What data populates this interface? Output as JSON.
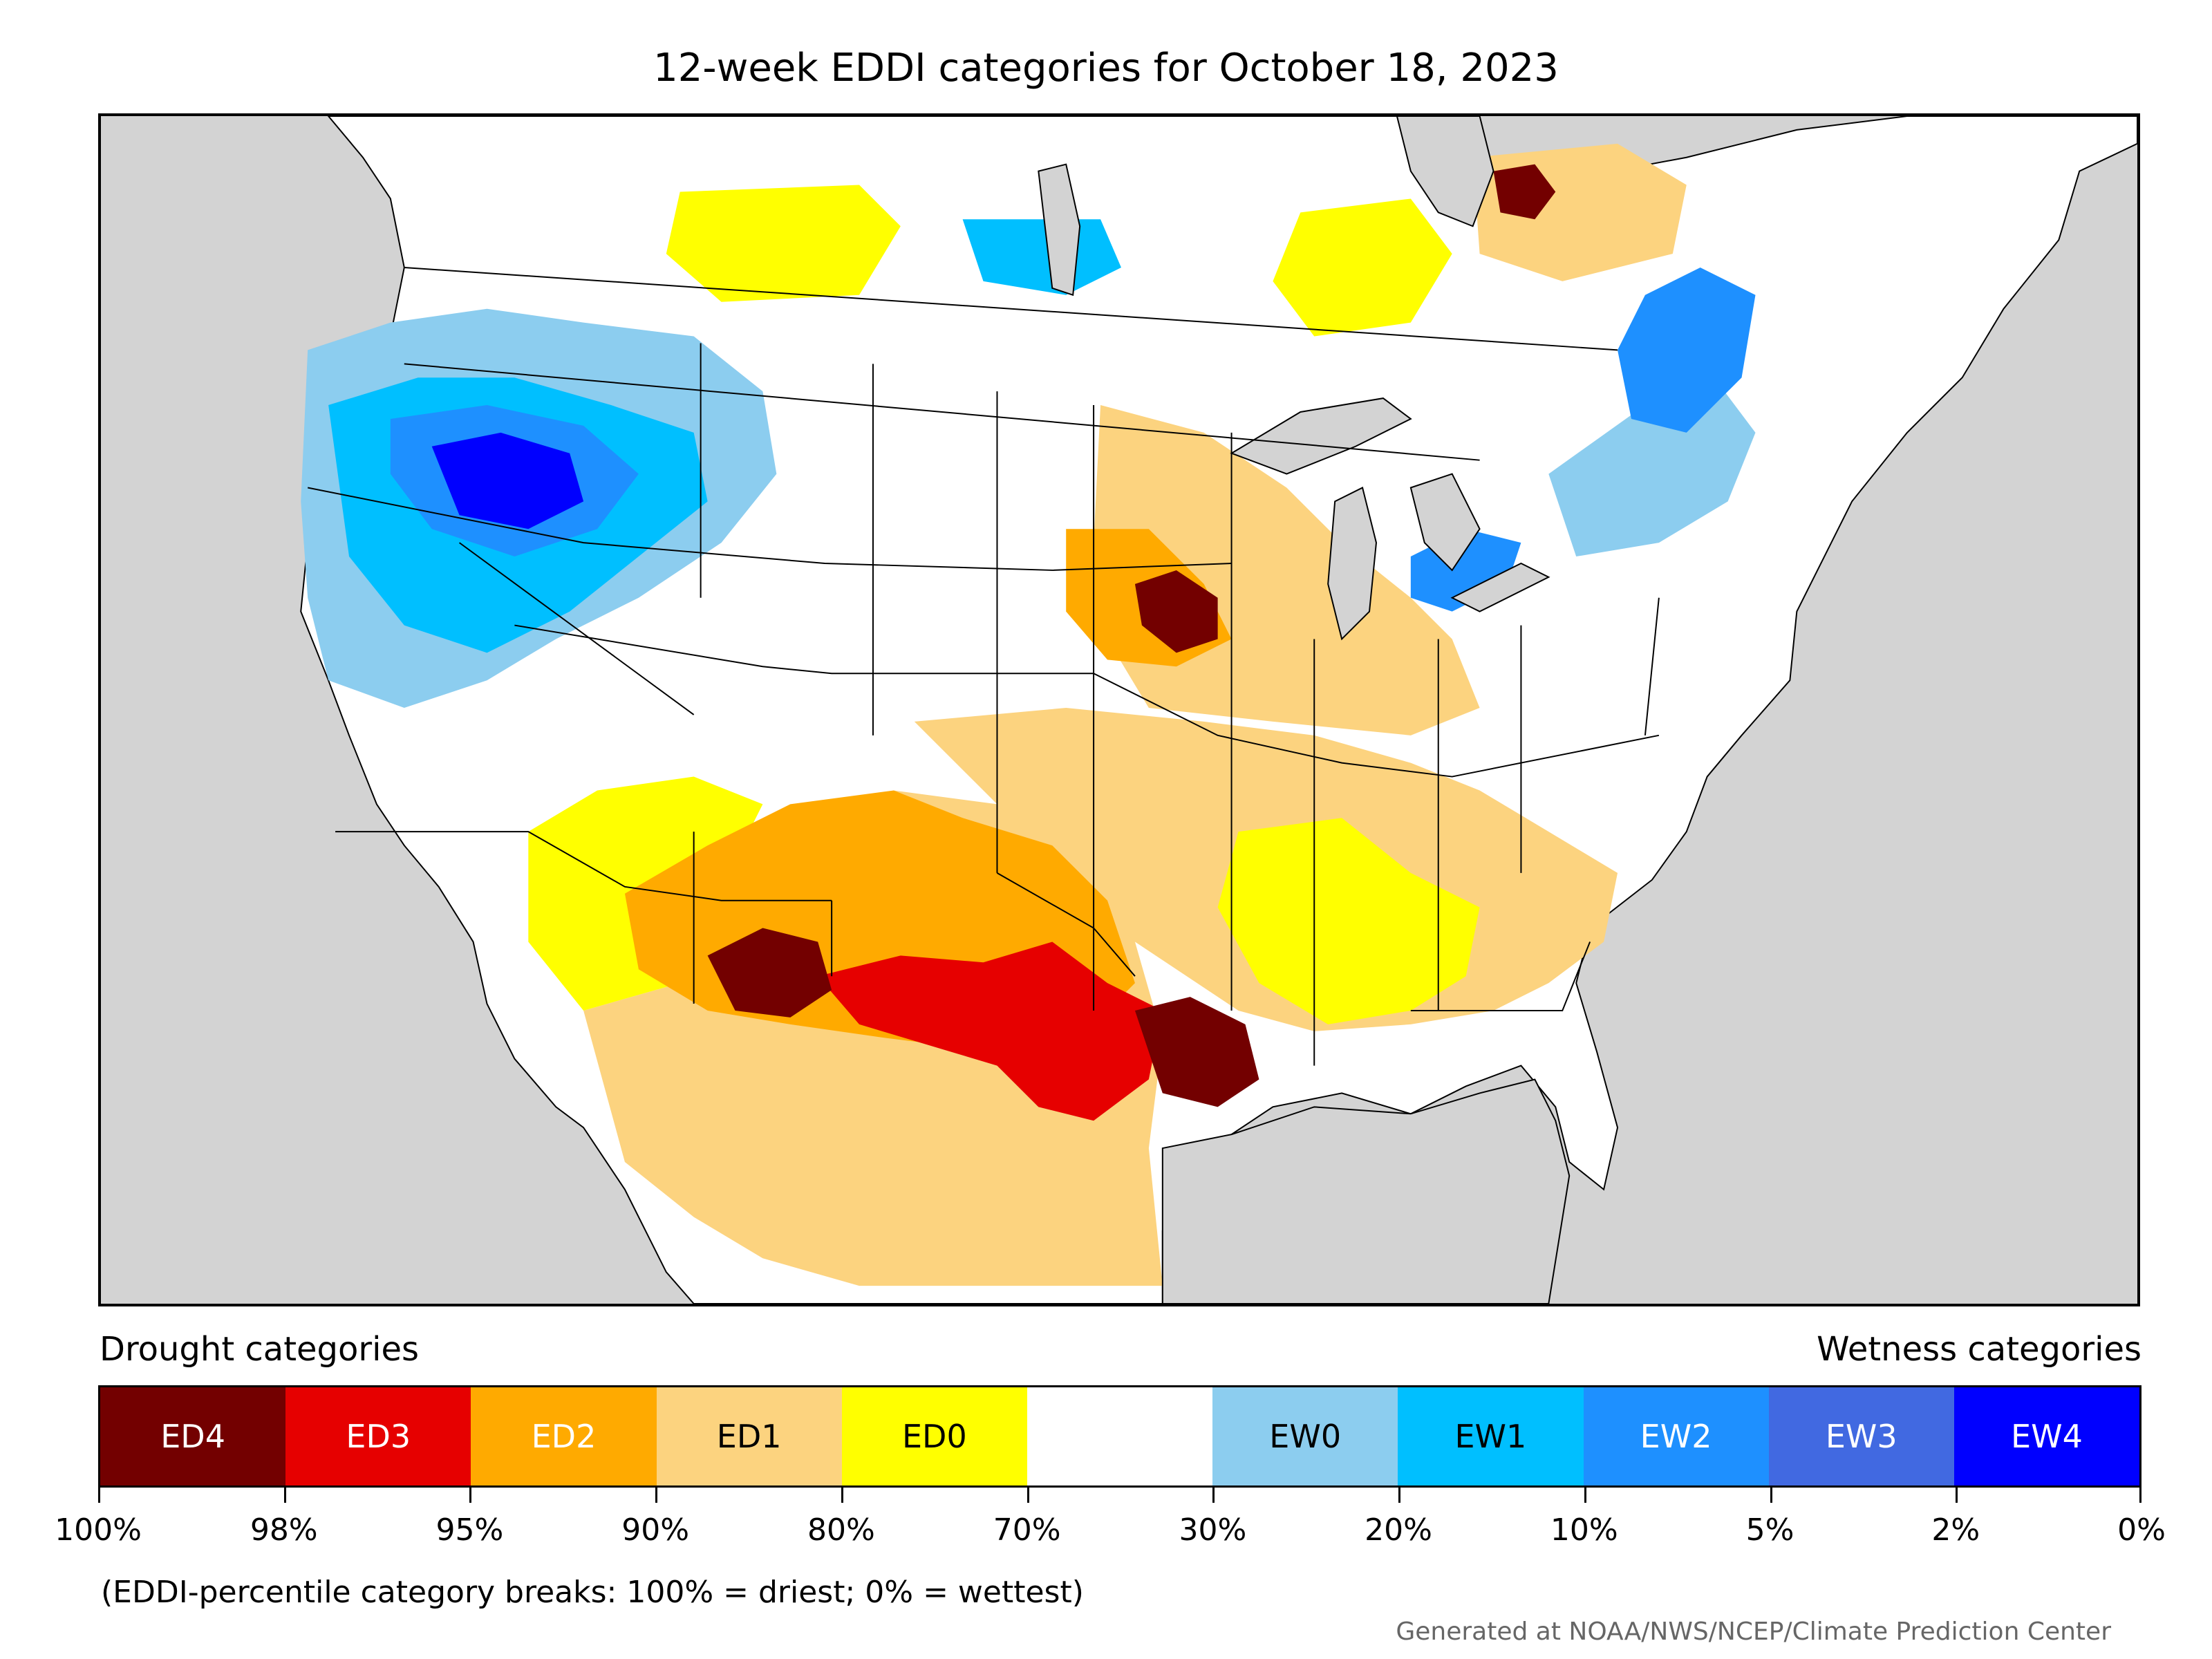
{
  "title": "12-week EDDI categories for October 18, 2023",
  "legend": {
    "drought_label": "Drought categories",
    "wetness_label": "Wetness categories",
    "categories": [
      {
        "label": "ED4",
        "color": "#730000",
        "text_color": "#ffffff"
      },
      {
        "label": "ED3",
        "color": "#e60000",
        "text_color": "#ffffff"
      },
      {
        "label": "ED2",
        "color": "#ffaa00",
        "text_color": "#ffffff"
      },
      {
        "label": "ED1",
        "color": "#fcd37f",
        "text_color": "#000000"
      },
      {
        "label": "ED0",
        "color": "#ffff00",
        "text_color": "#000000"
      },
      {
        "label": "",
        "color": "#ffffff",
        "text_color": "#000000"
      },
      {
        "label": "EW0",
        "color": "#8ccdef",
        "text_color": "#000000"
      },
      {
        "label": "EW1",
        "color": "#00bfff",
        "text_color": "#000000"
      },
      {
        "label": "EW2",
        "color": "#1e90ff",
        "text_color": "#ffffff"
      },
      {
        "label": "EW3",
        "color": "#4169e1",
        "text_color": "#ffffff"
      },
      {
        "label": "EW4",
        "color": "#0000ff",
        "text_color": "#ffffff"
      }
    ],
    "tick_labels": [
      "100%",
      "98%",
      "95%",
      "90%",
      "80%",
      "70%",
      "30%",
      "20%",
      "10%",
      "5%",
      "2%",
      "0%"
    ]
  },
  "note": "(EDDI-percentile category breaks: 100% = driest; 0% = wettest)",
  "credit": "Generated at NOAA/NWS/NCEP/Climate Prediction Center",
  "map": {
    "ocean_color": "#d3d3d3",
    "land_color": "#ffffff",
    "lake_color": "#d3d3d3"
  }
}
